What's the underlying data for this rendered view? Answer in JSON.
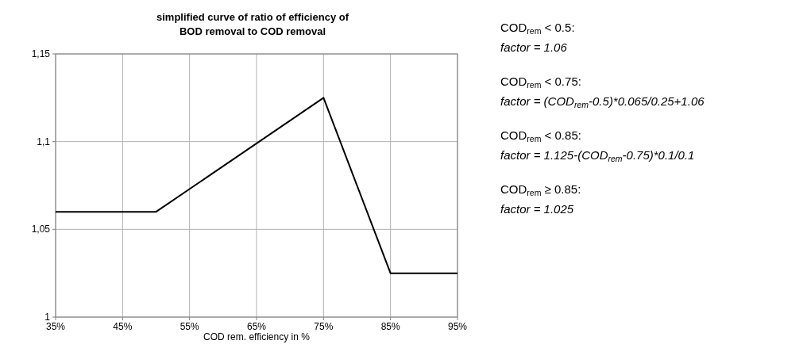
{
  "chart_data": {
    "type": "line",
    "title": "simplified curve of ratio of efficiency of BOD removal to COD removal",
    "xlabel": "COD rem. efficiency in %",
    "x": [
      35,
      50,
      75,
      85,
      95
    ],
    "series": [
      {
        "color": "#000000",
        "values": [
          1.06,
          1.06,
          1.125,
          1.025,
          1.025
        ]
      }
    ],
    "xlim": [
      35,
      95
    ],
    "xticks": [
      {
        "value": 35,
        "label": "35%"
      },
      {
        "value": 45,
        "label": "45%"
      },
      {
        "value": 55,
        "label": "55%"
      },
      {
        "value": 65,
        "label": "65%"
      },
      {
        "value": 75,
        "label": "75%"
      },
      {
        "value": 85,
        "label": "85%"
      },
      {
        "value": 95,
        "label": "95%"
      }
    ],
    "ylim": [
      1,
      1.15
    ],
    "yticks": [
      1,
      {
        "value": 1.05,
        "label": "1,05"
      },
      {
        "value": 1.1,
        "label": "1,1"
      },
      {
        "value": 1.15,
        "label": "1,15"
      }
    ],
    "grid": true,
    "marker": "none",
    "line_style": "solid",
    "annotations": [
      "COD$_{rem}$ < 0.5:",
      "factor = 1.06",
      "COD$_{rem}$ < 0.75:",
      "factor = (COD$_{rem}$-0.5)*0.065/0.25+1.06",
      "COD$_{rem}$ < 0.85:",
      "factor = 1.125-(COD$_{rem}$-0.75)*0.1/0.1",
      "COD$_{rem}$ ≥ 0.85:",
      "factor = 1.025"
    ]
  }
}
